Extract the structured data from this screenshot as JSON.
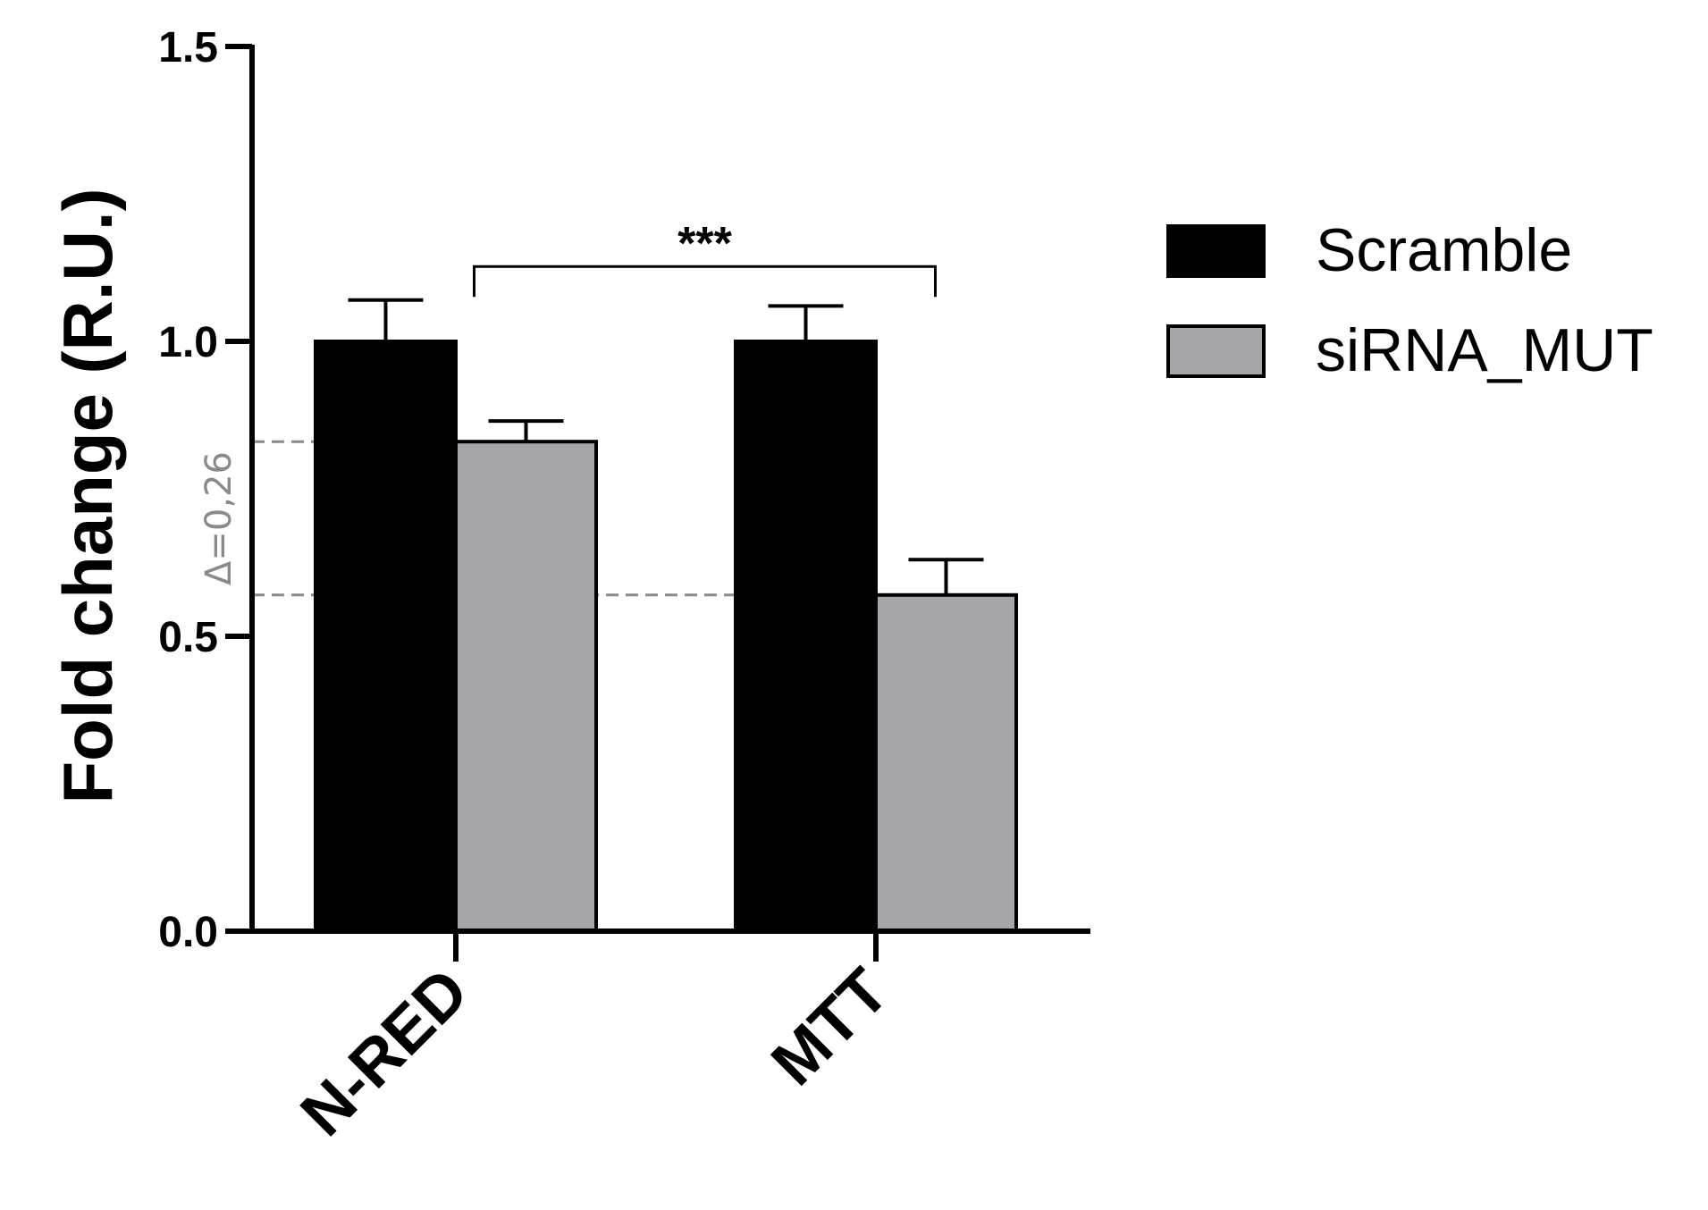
{
  "chart_data": {
    "type": "bar",
    "ylabel": "Fold change (R.U.)",
    "xlabel": "",
    "ylim": [
      0,
      1.5
    ],
    "yticks": [
      "0.0",
      "0.5",
      "1.0",
      "1.5"
    ],
    "categories": [
      "N-RED",
      "MTT"
    ],
    "series": [
      {
        "name": "Scramble",
        "color": "#000000",
        "values": [
          1.0,
          1.0
        ],
        "errors": [
          0.07,
          0.06
        ]
      },
      {
        "name": "siRNA_MUT",
        "color": "#a6a6aa",
        "values": [
          0.83,
          0.57
        ],
        "errors": [
          0.035,
          0.06
        ]
      }
    ],
    "legend_position": "right",
    "annotations": {
      "significance": {
        "text": "***",
        "from": "N-RED siRNA_MUT",
        "to": "MTT siRNA_MUT",
        "y": 1.13
      },
      "delta": {
        "text": "Δ=0,26",
        "upper": 0.83,
        "lower": 0.57
      }
    }
  }
}
